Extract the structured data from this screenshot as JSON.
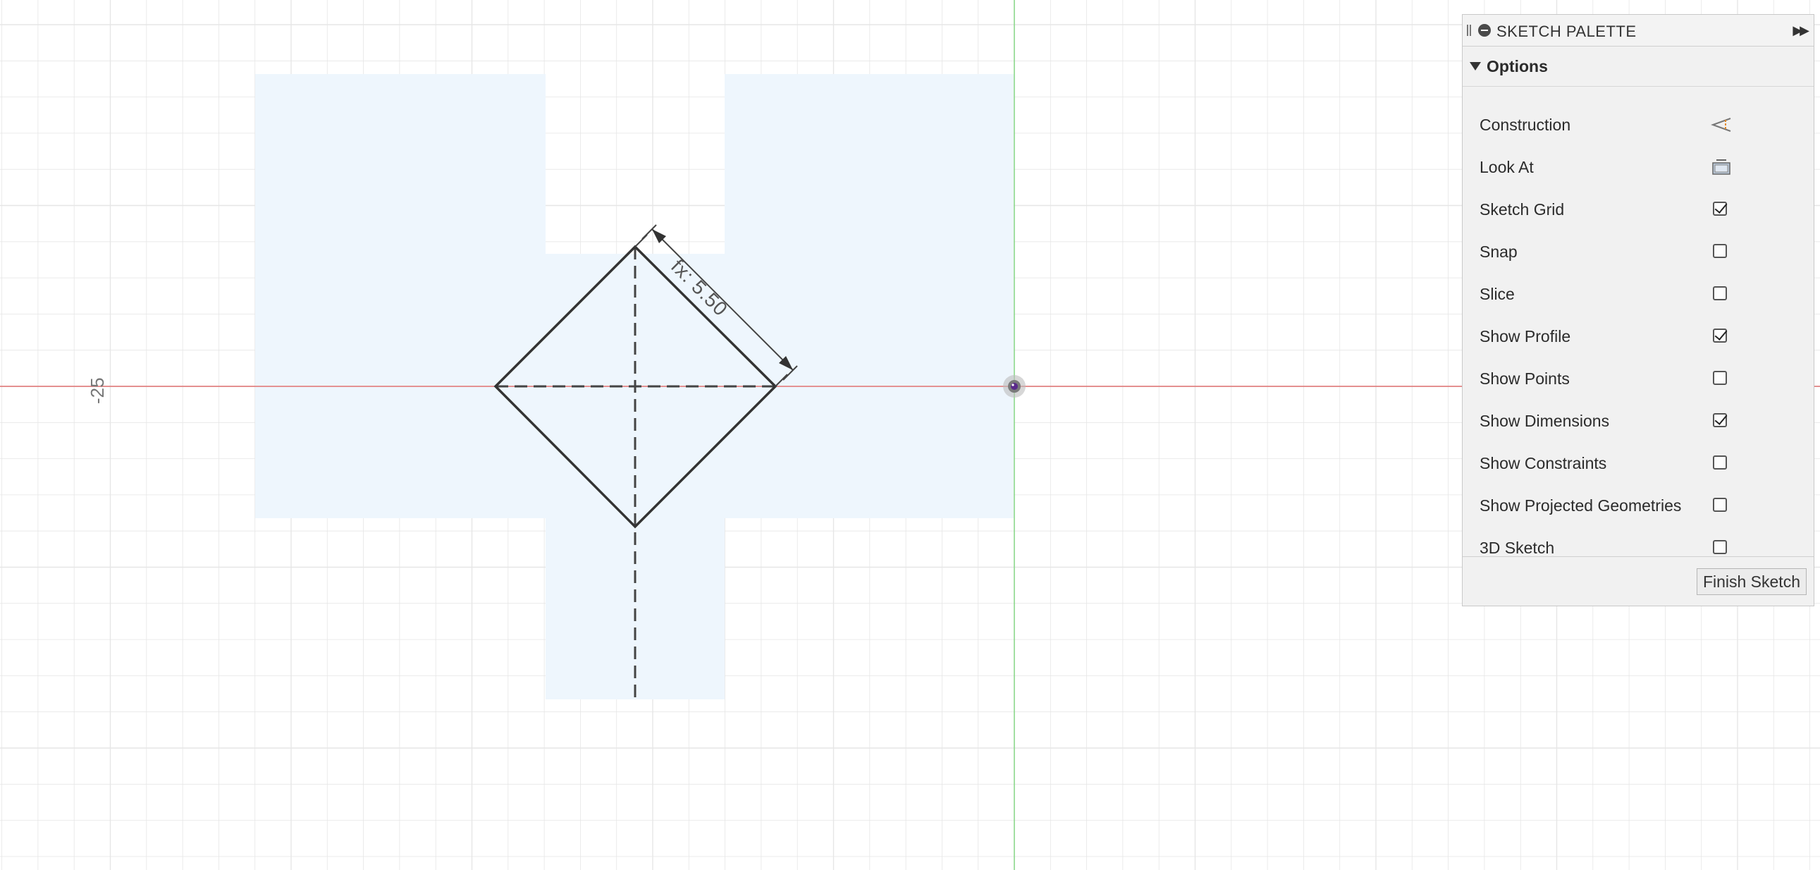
{
  "palette": {
    "title": "SKETCH PALETTE",
    "options_label": "Options",
    "finish_label": "Finish Sketch",
    "items": [
      {
        "label": "Construction",
        "control": "construction-icon"
      },
      {
        "label": "Look At",
        "control": "look-at-icon"
      },
      {
        "label": "Sketch Grid",
        "checked": true
      },
      {
        "label": "Snap",
        "checked": false
      },
      {
        "label": "Slice",
        "checked": false
      },
      {
        "label": "Show Profile",
        "checked": true
      },
      {
        "label": "Show Points",
        "checked": false
      },
      {
        "label": "Show Dimensions",
        "checked": true
      },
      {
        "label": "Show Constraints",
        "checked": false
      },
      {
        "label": "Show Projected Geometries",
        "checked": false
      },
      {
        "label": "3D Sketch",
        "checked": false
      }
    ]
  },
  "canvas": {
    "axis_tick_label": "-25",
    "dimension_label": "fx: 5.50",
    "colors": {
      "x_axis": "#e07070",
      "y_axis": "#86d886",
      "grid": "#e6e6e6",
      "profile_fill": "#eef6fd",
      "sketch_line": "#333333"
    }
  }
}
